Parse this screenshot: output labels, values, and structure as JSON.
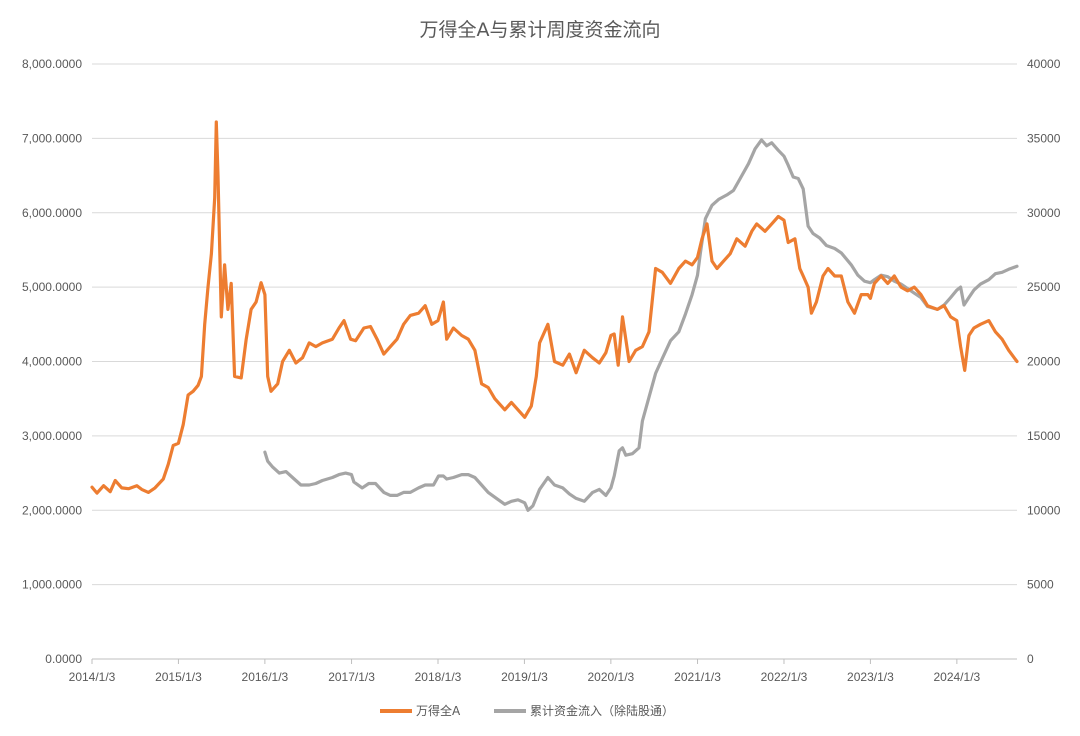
{
  "chart_data": {
    "type": "line",
    "title": "万得全A与累计周度资金流向",
    "x_ticks": [
      "2014/1/3",
      "2015/1/3",
      "2016/1/3",
      "2017/1/3",
      "2018/1/3",
      "2019/1/3",
      "2020/1/3",
      "2021/1/3",
      "2022/1/3",
      "2023/1/3",
      "2024/1/3"
    ],
    "x_range": [
      "2014/1/3",
      "2024/9/13"
    ],
    "y_left": {
      "min": 0,
      "max": 8000,
      "ticks": [
        "0.0000",
        "1,000.0000",
        "2,000.0000",
        "3,000.0000",
        "4,000.0000",
        "5,000.0000",
        "6,000.0000",
        "7,000.0000",
        "8,000.0000"
      ]
    },
    "y_right": {
      "min": 0,
      "max": 40000,
      "ticks": [
        "0",
        "5000",
        "10000",
        "15000",
        "20000",
        "25000",
        "30000",
        "35000",
        "40000"
      ]
    },
    "grid": true,
    "legend_position": "bottom",
    "series": [
      {
        "name": "万得全A",
        "axis": "left",
        "color": "#ED7D31",
        "points": [
          [
            "2014/1/3",
            2310
          ],
          [
            "2014/1/24",
            2230
          ],
          [
            "2014/2/21",
            2330
          ],
          [
            "2014/3/21",
            2250
          ],
          [
            "2014/4/11",
            2400
          ],
          [
            "2014/5/9",
            2300
          ],
          [
            "2014/6/6",
            2290
          ],
          [
            "2014/7/11",
            2330
          ],
          [
            "2014/8/1",
            2280
          ],
          [
            "2014/8/29",
            2240
          ],
          [
            "2014/9/26",
            2300
          ],
          [
            "2014/10/31",
            2420
          ],
          [
            "2014/11/21",
            2620
          ],
          [
            "2014/12/12",
            2870
          ],
          [
            "2015/1/3",
            2900
          ],
          [
            "2015/1/23",
            3150
          ],
          [
            "2015/2/13",
            3550
          ],
          [
            "2015/3/6",
            3600
          ],
          [
            "2015/3/27",
            3680
          ],
          [
            "2015/4/10",
            3800
          ],
          [
            "2015/4/24",
            4500
          ],
          [
            "2015/5/8",
            5000
          ],
          [
            "2015/5/22",
            5450
          ],
          [
            "2015/6/5",
            6200
          ],
          [
            "2015/6/12",
            7220
          ],
          [
            "2015/6/19",
            6500
          ],
          [
            "2015/7/3",
            4600
          ],
          [
            "2015/7/17",
            5300
          ],
          [
            "2015/7/31",
            4700
          ],
          [
            "2015/8/14",
            5050
          ],
          [
            "2015/8/28",
            3800
          ],
          [
            "2015/9/25",
            3780
          ],
          [
            "2015/10/16",
            4300
          ],
          [
            "2015/11/6",
            4700
          ],
          [
            "2015/11/27",
            4800
          ],
          [
            "2015/12/18",
            5060
          ],
          [
            "2016/1/3",
            4900
          ],
          [
            "2016/1/15",
            3800
          ],
          [
            "2016/1/29",
            3600
          ],
          [
            "2016/2/26",
            3700
          ],
          [
            "2016/3/18",
            4000
          ],
          [
            "2016/4/15",
            4150
          ],
          [
            "2016/5/13",
            3980
          ],
          [
            "2016/6/10",
            4050
          ],
          [
            "2016/7/8",
            4250
          ],
          [
            "2016/8/5",
            4200
          ],
          [
            "2016/9/2",
            4250
          ],
          [
            "2016/10/14",
            4300
          ],
          [
            "2016/11/11",
            4450
          ],
          [
            "2016/12/2",
            4550
          ],
          [
            "2016/12/30",
            4300
          ],
          [
            "2017/1/20",
            4280
          ],
          [
            "2017/2/24",
            4450
          ],
          [
            "2017/3/24",
            4470
          ],
          [
            "2017/4/21",
            4300
          ],
          [
            "2017/5/19",
            4100
          ],
          [
            "2017/6/16",
            4200
          ],
          [
            "2017/7/14",
            4300
          ],
          [
            "2017/8/11",
            4500
          ],
          [
            "2017/9/8",
            4620
          ],
          [
            "2017/10/13",
            4650
          ],
          [
            "2017/11/10",
            4750
          ],
          [
            "2017/12/8",
            4500
          ],
          [
            "2018/1/3",
            4550
          ],
          [
            "2018/1/26",
            4800
          ],
          [
            "2018/2/9",
            4300
          ],
          [
            "2018/3/9",
            4450
          ],
          [
            "2018/4/13",
            4350
          ],
          [
            "2018/5/11",
            4300
          ],
          [
            "2018/6/8",
            4150
          ],
          [
            "2018/7/6",
            3700
          ],
          [
            "2018/8/3",
            3650
          ],
          [
            "2018/8/31",
            3500
          ],
          [
            "2018/10/12",
            3350
          ],
          [
            "2018/11/9",
            3450
          ],
          [
            "2018/12/7",
            3350
          ],
          [
            "2019/1/4",
            3250
          ],
          [
            "2019/2/1",
            3400
          ],
          [
            "2019/2/22",
            3800
          ],
          [
            "2019/3/8",
            4250
          ],
          [
            "2019/4/12",
            4500
          ],
          [
            "2019/5/10",
            4000
          ],
          [
            "2019/6/14",
            3950
          ],
          [
            "2019/7/12",
            4100
          ],
          [
            "2019/8/9",
            3850
          ],
          [
            "2019/9/13",
            4150
          ],
          [
            "2019/10/18",
            4050
          ],
          [
            "2019/11/15",
            3980
          ],
          [
            "2019/12/13",
            4120
          ],
          [
            "2020/1/3",
            4350
          ],
          [
            "2020/1/17",
            4370
          ],
          [
            "2020/2/3",
            3950
          ],
          [
            "2020/2/21",
            4600
          ],
          [
            "2020/3/20",
            4000
          ],
          [
            "2020/4/17",
            4150
          ],
          [
            "2020/5/15",
            4200
          ],
          [
            "2020/6/12",
            4400
          ],
          [
            "2020/7/10",
            5250
          ],
          [
            "2020/8/7",
            5200
          ],
          [
            "2020/9/11",
            5050
          ],
          [
            "2020/10/16",
            5250
          ],
          [
            "2020/11/13",
            5350
          ],
          [
            "2020/12/11",
            5300
          ],
          [
            "2021/1/3",
            5400
          ],
          [
            "2021/1/22",
            5650
          ],
          [
            "2021/2/12",
            5850
          ],
          [
            "2021/3/5",
            5350
          ],
          [
            "2021/3/26",
            5250
          ],
          [
            "2021/4/23",
            5350
          ],
          [
            "2021/5/21",
            5450
          ],
          [
            "2021/6/18",
            5650
          ],
          [
            "2021/7/23",
            5550
          ],
          [
            "2021/8/20",
            5750
          ],
          [
            "2021/9/10",
            5850
          ],
          [
            "2021/10/15",
            5750
          ],
          [
            "2021/11/12",
            5850
          ],
          [
            "2021/12/10",
            5950
          ],
          [
            "2022/1/3",
            5900
          ],
          [
            "2022/1/21",
            5600
          ],
          [
            "2022/2/18",
            5650
          ],
          [
            "2022/3/11",
            5250
          ],
          [
            "2022/3/25",
            5150
          ],
          [
            "2022/4/15",
            5000
          ],
          [
            "2022/4/29",
            4650
          ],
          [
            "2022/5/20",
            4800
          ],
          [
            "2022/6/17",
            5150
          ],
          [
            "2022/7/8",
            5250
          ],
          [
            "2022/8/5",
            5150
          ],
          [
            "2022/9/2",
            5150
          ],
          [
            "2022/9/30",
            4800
          ],
          [
            "2022/10/28",
            4650
          ],
          [
            "2022/11/25",
            4900
          ],
          [
            "2022/12/23",
            4900
          ],
          [
            "2023/1/3",
            4850
          ],
          [
            "2023/1/20",
            5050
          ],
          [
            "2023/2/17",
            5150
          ],
          [
            "2023/3/17",
            5050
          ],
          [
            "2023/4/14",
            5150
          ],
          [
            "2023/5/12",
            5000
          ],
          [
            "2023/6/9",
            4950
          ],
          [
            "2023/7/7",
            5000
          ],
          [
            "2023/8/4",
            4900
          ],
          [
            "2023/9/1",
            4750
          ],
          [
            "2023/10/13",
            4700
          ],
          [
            "2023/11/10",
            4750
          ],
          [
            "2023/12/8",
            4600
          ],
          [
            "2024/1/3",
            4550
          ],
          [
            "2024/1/19",
            4200
          ],
          [
            "2024/2/5",
            3880
          ],
          [
            "2024/2/23",
            4350
          ],
          [
            "2024/3/15",
            4450
          ],
          [
            "2024/4/12",
            4500
          ],
          [
            "2024/5/17",
            4550
          ],
          [
            "2024/6/14",
            4400
          ],
          [
            "2024/7/12",
            4300
          ],
          [
            "2024/8/9",
            4150
          ],
          [
            "2024/9/13",
            4000
          ]
        ]
      },
      {
        "name": "累计资金流入（除陆股通）",
        "axis": "right",
        "color": "#A5A5A5",
        "points": [
          [
            "2016/1/3",
            13900
          ],
          [
            "2016/1/15",
            13300
          ],
          [
            "2016/2/5",
            12900
          ],
          [
            "2016/3/4",
            12500
          ],
          [
            "2016/4/1",
            12600
          ],
          [
            "2016/5/6",
            12100
          ],
          [
            "2016/6/3",
            11700
          ],
          [
            "2016/7/8",
            11700
          ],
          [
            "2016/8/5",
            11800
          ],
          [
            "2016/9/2",
            12000
          ],
          [
            "2016/10/14",
            12200
          ],
          [
            "2016/11/11",
            12400
          ],
          [
            "2016/12/9",
            12500
          ],
          [
            "2017/1/3",
            12400
          ],
          [
            "2017/1/13",
            11900
          ],
          [
            "2017/2/17",
            11500
          ],
          [
            "2017/3/17",
            11800
          ],
          [
            "2017/4/14",
            11800
          ],
          [
            "2017/5/19",
            11200
          ],
          [
            "2017/6/16",
            11000
          ],
          [
            "2017/7/14",
            11000
          ],
          [
            "2017/8/11",
            11200
          ],
          [
            "2017/9/8",
            11200
          ],
          [
            "2017/10/13",
            11500
          ],
          [
            "2017/11/10",
            11700
          ],
          [
            "2017/12/15",
            11700
          ],
          [
            "2018/1/5",
            12300
          ],
          [
            "2018/1/26",
            12300
          ],
          [
            "2018/2/9",
            12100
          ],
          [
            "2018/3/9",
            12200
          ],
          [
            "2018/4/13",
            12400
          ],
          [
            "2018/5/11",
            12400
          ],
          [
            "2018/6/8",
            12200
          ],
          [
            "2018/7/6",
            11700
          ],
          [
            "2018/8/3",
            11200
          ],
          [
            "2018/9/7",
            10800
          ],
          [
            "2018/10/12",
            10400
          ],
          [
            "2018/11/9",
            10600
          ],
          [
            "2018/12/7",
            10700
          ],
          [
            "2019/1/4",
            10500
          ],
          [
            "2019/1/18",
            10000
          ],
          [
            "2019/2/8",
            10300
          ],
          [
            "2019/3/8",
            11400
          ],
          [
            "2019/4/12",
            12200
          ],
          [
            "2019/5/10",
            11700
          ],
          [
            "2019/6/14",
            11500
          ],
          [
            "2019/7/12",
            11100
          ],
          [
            "2019/8/9",
            10800
          ],
          [
            "2019/9/13",
            10600
          ],
          [
            "2019/10/18",
            11200
          ],
          [
            "2019/11/15",
            11400
          ],
          [
            "2019/12/13",
            11000
          ],
          [
            "2020/1/3",
            11500
          ],
          [
            "2020/1/17",
            12300
          ],
          [
            "2020/2/7",
            14000
          ],
          [
            "2020/2/21",
            14200
          ],
          [
            "2020/3/6",
            13700
          ],
          [
            "2020/4/3",
            13800
          ],
          [
            "2020/5/1",
            14200
          ],
          [
            "2020/5/15",
            16000
          ],
          [
            "2020/6/12",
            17600
          ],
          [
            "2020/7/10",
            19200
          ],
          [
            "2020/8/7",
            20200
          ],
          [
            "2020/9/11",
            21400
          ],
          [
            "2020/10/16",
            22000
          ],
          [
            "2020/11/13",
            23200
          ],
          [
            "2020/12/11",
            24500
          ],
          [
            "2021/1/3",
            25800
          ],
          [
            "2021/1/15",
            27300
          ],
          [
            "2021/2/5",
            29600
          ],
          [
            "2021/3/5",
            30500
          ],
          [
            "2021/4/2",
            30900
          ],
          [
            "2021/5/7",
            31200
          ],
          [
            "2021/6/4",
            31500
          ],
          [
            "2021/7/2",
            32300
          ],
          [
            "2021/8/6",
            33300
          ],
          [
            "2021/9/3",
            34300
          ],
          [
            "2021/9/30",
            34900
          ],
          [
            "2021/10/22",
            34500
          ],
          [
            "2021/11/12",
            34700
          ],
          [
            "2021/12/10",
            34200
          ],
          [
            "2022/1/3",
            33800
          ],
          [
            "2022/1/21",
            33200
          ],
          [
            "2022/2/11",
            32400
          ],
          [
            "2022/3/4",
            32300
          ],
          [
            "2022/3/25",
            31600
          ],
          [
            "2022/4/15",
            29100
          ],
          [
            "2022/5/6",
            28600
          ],
          [
            "2022/6/3",
            28300
          ],
          [
            "2022/7/1",
            27800
          ],
          [
            "2022/8/5",
            27600
          ],
          [
            "2022/9/2",
            27300
          ],
          [
            "2022/10/14",
            26500
          ],
          [
            "2022/11/11",
            25800
          ],
          [
            "2022/12/9",
            25400
          ],
          [
            "2023/1/3",
            25300
          ],
          [
            "2023/1/20",
            25500
          ],
          [
            "2023/2/17",
            25800
          ],
          [
            "2023/3/17",
            25700
          ],
          [
            "2023/4/14",
            25400
          ],
          [
            "2023/5/12",
            25200
          ],
          [
            "2023/6/9",
            24900
          ],
          [
            "2023/7/7",
            24600
          ],
          [
            "2023/8/4",
            24300
          ],
          [
            "2023/9/1",
            23700
          ],
          [
            "2023/10/13",
            23500
          ],
          [
            "2023/11/10",
            23800
          ],
          [
            "2023/12/8",
            24300
          ],
          [
            "2024/1/3",
            24800
          ],
          [
            "2024/1/19",
            25000
          ],
          [
            "2024/2/2",
            23800
          ],
          [
            "2024/2/23",
            24300
          ],
          [
            "2024/3/15",
            24800
          ],
          [
            "2024/4/12",
            25200
          ],
          [
            "2024/5/17",
            25500
          ],
          [
            "2024/6/14",
            25900
          ],
          [
            "2024/7/12",
            26000
          ],
          [
            "2024/8/9",
            26200
          ],
          [
            "2024/9/13",
            26400
          ]
        ]
      }
    ]
  }
}
